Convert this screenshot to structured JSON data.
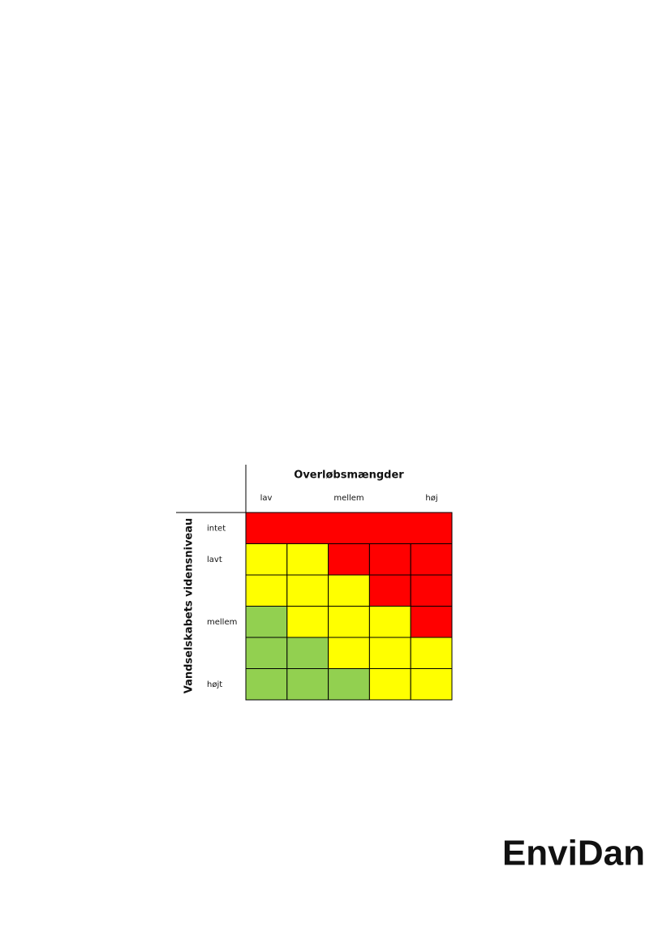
{
  "matrix": {
    "column_title": "Overløbsmængder",
    "column_labels": [
      "lav",
      "mellem",
      "høj"
    ],
    "row_title": "Vandselskabets vidensniveau",
    "row_labels": [
      "intet",
      "lavt",
      null,
      "mellem",
      null,
      "højt"
    ],
    "rows": [
      [
        "#ff0000"
      ],
      [
        "#ffff00",
        "#ffff00",
        "#ff0000",
        "#ff0000",
        "#ff0000"
      ],
      [
        "#ffff00",
        "#ffff00",
        "#ffff00",
        "#ff0000",
        "#ff0000"
      ],
      [
        "#92d050",
        "#ffff00",
        "#ffff00",
        "#ffff00",
        "#ff0000"
      ],
      [
        "#92d050",
        "#92d050",
        "#ffff00",
        "#ffff00",
        "#ffff00"
      ],
      [
        "#92d050",
        "#92d050",
        "#92d050",
        "#ffff00",
        "#ffff00"
      ]
    ]
  },
  "footer": {
    "logo": "EnviDan"
  }
}
